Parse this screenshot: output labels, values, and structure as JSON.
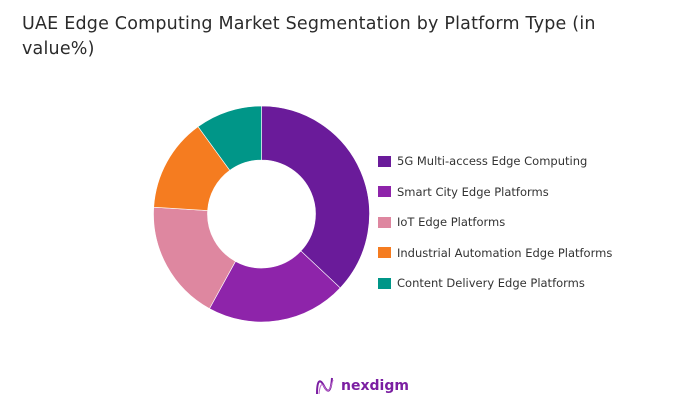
{
  "chart_data": {
    "type": "pie",
    "variant": "donut",
    "title": "UAE Edge Computing Market Segmentation by Platform Type (in value%)",
    "categories": [
      "5G Multi-access Edge Computing",
      "Smart City Edge Platforms",
      "IoT Edge Platforms",
      "Industrial Automation Edge Platforms",
      "Content Delivery Edge Platforms"
    ],
    "values": [
      37,
      21,
      18,
      14,
      10
    ],
    "colors": [
      "#6a1b9a",
      "#8e24aa",
      "#de87a0",
      "#f57c20",
      "#009688"
    ],
    "legend_position": "right"
  },
  "brand": {
    "logo_text": "nexdigm"
  }
}
